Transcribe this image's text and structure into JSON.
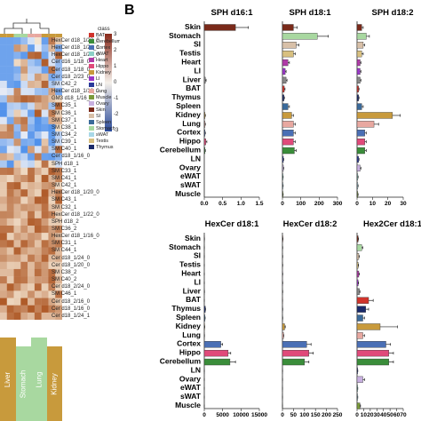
{
  "panel_b_label": "B",
  "heatmap": {
    "legend_title": "class",
    "colorbar_ticks": [
      "3",
      "2",
      "1",
      "0",
      "-1",
      "-2",
      "-3"
    ],
    "row_labels": [
      "HexCer d18_1/23_0",
      "HexCer d18_1/24_1",
      "HexCer d18_1/24_0",
      "Cer d16_1/18_0",
      "Cer d18_1/18_0",
      "Cer d18_2/23_0",
      "SM C42_2",
      "HexCer d18_1/18_0",
      "GM3 d18_1/16_0",
      "SM C35_1",
      "SM C36_1",
      "SM C37_1",
      "SM C38_1",
      "SM C34_2",
      "SM C39_1",
      "SM C40_1",
      "Cer d18_1/16_0",
      "SPH d18_1",
      "SM C33_1",
      "SM C41_1",
      "SM C42_1",
      "HexCer d18_1/20_0",
      "SM C43_1",
      "SM C32_1",
      "HexCer d18_1/22_0",
      "SPH d18_2",
      "SM C36_2",
      "HexCer d18_1/16_0",
      "SM C31_1",
      "SM C44_1",
      "Cer d18_1/24_0",
      "Cer d18_1/20_0",
      "SM C38_2",
      "SM C40_2",
      "Cer d18_2/24_0",
      "SM C46_1",
      "Cer d18_2/16_0",
      "Cer d18_1/16_0",
      "Cer d18_1/24_1"
    ],
    "bottom_tissues": [
      "Liver",
      "Stomach",
      "Lung",
      "Kidney"
    ],
    "classes": [
      {
        "name": "BAT",
        "color": "#d0342c"
      },
      {
        "name": "Cerebellum",
        "color": "#3a8d3a"
      },
      {
        "name": "Cortex",
        "color": "#4a6fb5"
      },
      {
        "name": "eWAT",
        "color": "#8cd0c6"
      },
      {
        "name": "Heart",
        "color": "#b03aa8"
      },
      {
        "name": "Hippo",
        "color": "#e04a7a"
      },
      {
        "name": "Kidney",
        "color": "#c89a3c"
      },
      {
        "name": "LI",
        "color": "#9a38c8"
      },
      {
        "name": "LN",
        "color": "#2a3a9a"
      },
      {
        "name": "Lung",
        "color": "#e8a8a0"
      },
      {
        "name": "Muscle",
        "color": "#7a9a3a"
      },
      {
        "name": "Ovary",
        "color": "#c8b0e0"
      },
      {
        "name": "Skin",
        "color": "#7a2a1a"
      },
      {
        "name": "SI",
        "color": "#d8c0a8"
      },
      {
        "name": "Spleen",
        "color": "#3a6a9a"
      },
      {
        "name": "Stomach",
        "color": "#a8d8a0"
      },
      {
        "name": "sWAT",
        "color": "#a8d8e8"
      },
      {
        "name": "Testis",
        "color": "#d8c080"
      },
      {
        "name": "Thymus",
        "color": "#1a2a6a"
      }
    ]
  },
  "chart_data": [
    {
      "type": "bar",
      "orientation": "horizontal",
      "title": "SPH d16:1",
      "categories": [
        "Skin",
        "Stomach",
        "SI",
        "Testis",
        "Heart",
        "LI",
        "Liver",
        "BAT",
        "Thymus",
        "Spleen",
        "Kidney",
        "Lung",
        "Cortex",
        "Hippo",
        "Cerebellum",
        "LN",
        "Ovary",
        "eWAT",
        "sWAT",
        "Muscle"
      ],
      "values": [
        0.85,
        0,
        0,
        0,
        0,
        0,
        0.03,
        0,
        0,
        0,
        0.02,
        0.02,
        0.02,
        0.04,
        0.02,
        0,
        0,
        0,
        0,
        0
      ],
      "errors": [
        0.35,
        0,
        0,
        0,
        0,
        0,
        0.02,
        0,
        0,
        0,
        0.01,
        0.01,
        0.01,
        0.03,
        0.01,
        0,
        0,
        0,
        0,
        0
      ],
      "xlim": [
        0,
        1.5
      ],
      "ticks": [
        "0.0",
        "0.5",
        "1.0",
        "1.5"
      ]
    },
    {
      "type": "bar",
      "orientation": "horizontal",
      "title": "SPH d18:1",
      "categories": [
        "Skin",
        "Stomach",
        "SI",
        "Testis",
        "Heart",
        "LI",
        "Liver",
        "BAT",
        "Thymus",
        "Spleen",
        "Kidney",
        "Lung",
        "Cortex",
        "Hippo",
        "Cerebellum",
        "LN",
        "Ovary",
        "eWAT",
        "sWAT",
        "Muscle"
      ],
      "values": [
        60,
        190,
        75,
        60,
        30,
        15,
        20,
        10,
        8,
        30,
        50,
        60,
        60,
        60,
        65,
        5,
        5,
        3,
        3,
        3
      ],
      "errors": [
        20,
        60,
        15,
        10,
        8,
        5,
        5,
        4,
        3,
        8,
        10,
        10,
        10,
        10,
        10,
        2,
        2,
        1,
        1,
        1
      ],
      "xlim": [
        0,
        300
      ],
      "ticks": [
        "0",
        "100",
        "200",
        "300"
      ]
    },
    {
      "type": "bar",
      "orientation": "horizontal",
      "title": "SPH d18:2",
      "categories": [
        "Skin",
        "Stomach",
        "SI",
        "Testis",
        "Heart",
        "LI",
        "Liver",
        "BAT",
        "Thymus",
        "Spleen",
        "Kidney",
        "Lung",
        "Cortex",
        "Hippo",
        "Cerebellum",
        "LN",
        "Ovary",
        "eWAT",
        "sWAT",
        "Muscle"
      ],
      "values": [
        3,
        6,
        4,
        3,
        2,
        2,
        2,
        1,
        1,
        3,
        23,
        11,
        5,
        5,
        5,
        1,
        2,
        0.5,
        0.5,
        0.5
      ],
      "errors": [
        1,
        2,
        1,
        1,
        0.5,
        0.5,
        0.5,
        0.3,
        0.3,
        1,
        5,
        3,
        1,
        1,
        1,
        0.3,
        0.5,
        0.2,
        0.2,
        0.2
      ],
      "xlim": [
        0,
        30
      ],
      "ticks": [
        "0",
        "10",
        "20",
        "30"
      ]
    },
    {
      "type": "bar",
      "orientation": "horizontal",
      "title": "HexCer d18:1",
      "categories": [
        "Skin",
        "Stomach",
        "SI",
        "Testis",
        "Heart",
        "LI",
        "Liver",
        "BAT",
        "Thymus",
        "Spleen",
        "Kidney",
        "Lung",
        "Cortex",
        "Hippo",
        "Cerebellum",
        "LN",
        "Ovary",
        "eWAT",
        "sWAT",
        "Muscle"
      ],
      "values": [
        50,
        30,
        20,
        10,
        10,
        10,
        50,
        10,
        300,
        200,
        100,
        50,
        4500,
        6500,
        7000,
        20,
        10,
        5,
        5,
        5
      ],
      "errors": [
        10,
        5,
        5,
        2,
        2,
        2,
        10,
        2,
        50,
        40,
        20,
        10,
        500,
        700,
        1500,
        5,
        2,
        1,
        1,
        1
      ],
      "xlim": [
        0,
        15000
      ],
      "ticks": [
        "0",
        "5000",
        "10000",
        "15000"
      ]
    },
    {
      "type": "bar",
      "orientation": "horizontal",
      "title": "HexCer d18:2",
      "categories": [
        "Skin",
        "Stomach",
        "SI",
        "Testis",
        "Heart",
        "LI",
        "Liver",
        "BAT",
        "Thymus",
        "Spleen",
        "Kidney",
        "Lung",
        "Cortex",
        "Hippo",
        "Cerebellum",
        "LN",
        "Ovary",
        "eWAT",
        "sWAT",
        "Muscle"
      ],
      "values": [
        2,
        1,
        1,
        1,
        1,
        1,
        1,
        0.5,
        1,
        1,
        10,
        5,
        110,
        120,
        100,
        0.5,
        0.5,
        0.3,
        0.3,
        0.3
      ],
      "errors": [
        0.5,
        0.3,
        0.3,
        0.3,
        0.3,
        0.3,
        0.3,
        0.2,
        0.3,
        0.3,
        3,
        1,
        20,
        20,
        20,
        0.2,
        0.2,
        0.1,
        0.1,
        0.1
      ],
      "xlim": [
        0,
        250
      ],
      "ticks": [
        "0",
        "50",
        "100",
        "150",
        "200",
        "250"
      ]
    },
    {
      "type": "bar",
      "orientation": "horizontal",
      "title": "Hex2Cer d18:1",
      "categories": [
        "Skin",
        "Stomach",
        "SI",
        "Testis",
        "Heart",
        "LI",
        "Liver",
        "BAT",
        "Thymus",
        "Spleen",
        "Kidney",
        "Lung",
        "Cortex",
        "Hippo",
        "Cerebellum",
        "LN",
        "Ovary",
        "eWAT",
        "sWAT",
        "Muscle"
      ],
      "values": [
        2,
        8,
        3,
        2,
        3,
        2,
        4,
        20,
        15,
        10,
        40,
        10,
        50,
        55,
        55,
        1,
        10,
        1,
        1,
        5
      ],
      "errors": [
        0.5,
        2,
        1,
        0.5,
        1,
        0.5,
        1,
        8,
        5,
        3,
        30,
        3,
        8,
        8,
        8,
        0.3,
        3,
        0.3,
        0.3,
        1
      ],
      "xlim": [
        0,
        80
      ],
      "ticks": [
        "0",
        "10",
        "20",
        "30",
        "40",
        "50",
        "60",
        "70"
      ]
    }
  ]
}
